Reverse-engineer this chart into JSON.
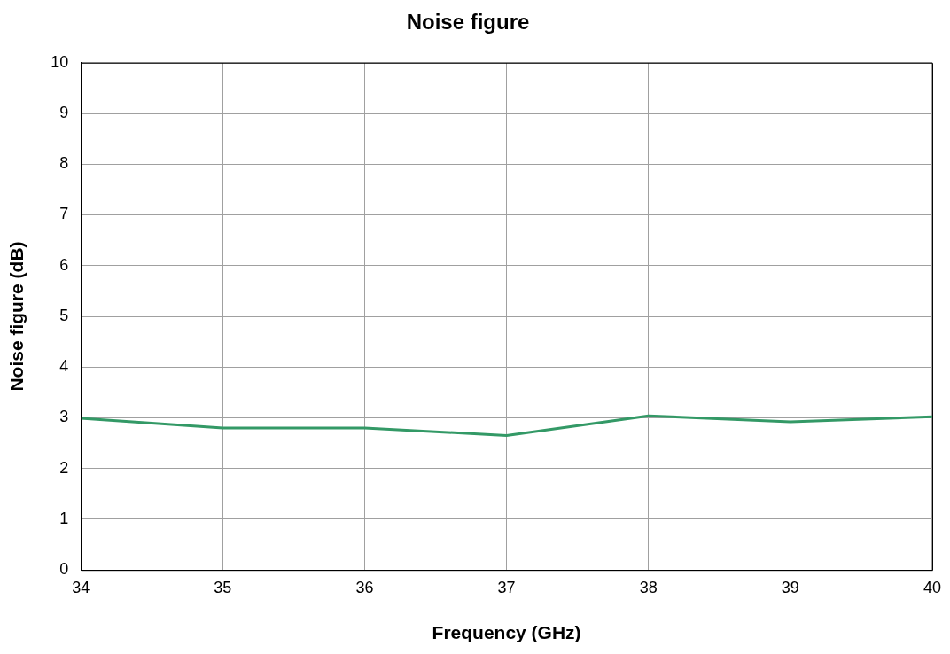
{
  "chart_data": {
    "type": "line",
    "title": "Noise figure",
    "xlabel": "Frequency (GHz)",
    "ylabel": "Noise figure (dB)",
    "x": [
      34,
      35,
      36,
      37,
      38,
      39,
      40
    ],
    "series": [
      {
        "color": "#339966",
        "values": [
          2.99,
          2.8,
          2.8,
          2.65,
          3.04,
          2.92,
          3.02
        ]
      }
    ],
    "xlim": [
      34,
      40
    ],
    "xticks": [
      34,
      35,
      36,
      37,
      38,
      39,
      40
    ],
    "ylim": [
      0,
      10
    ],
    "yticks": [
      0,
      1,
      2,
      3,
      4,
      5,
      6,
      7,
      8,
      9,
      10
    ],
    "grid": true,
    "legend": false,
    "marker": "none",
    "line_style": "solid"
  }
}
